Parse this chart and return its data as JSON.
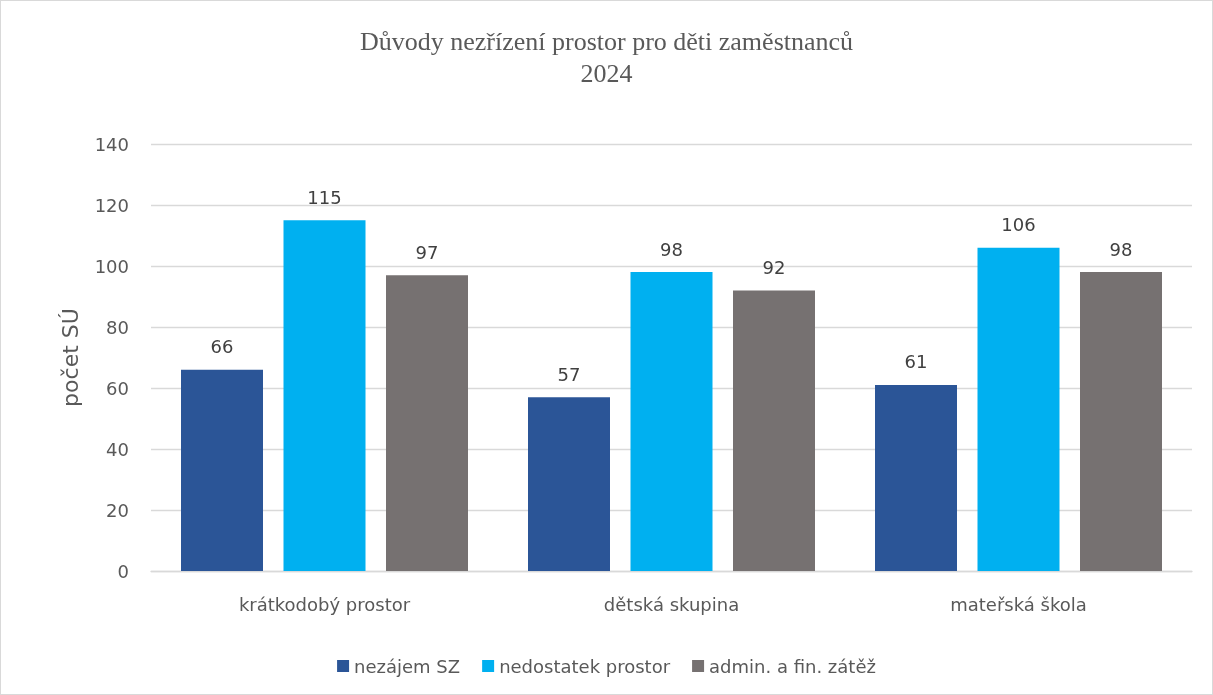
{
  "chart_data": {
    "type": "bar",
    "title": "Důvody nezřízení prostor pro děti zaměstnanců",
    "subtitle": "2024",
    "ylabel": "počet SÚ",
    "categories": [
      "krátkodobý prostor",
      "dětská skupina",
      "mateřská škola"
    ],
    "series": [
      {
        "name": "nezájem SZ",
        "color": "#2b5597",
        "values": [
          66,
          57,
          61
        ]
      },
      {
        "name": "nedostatek prostor",
        "color": "#00b0f0",
        "values": [
          115,
          98,
          106
        ]
      },
      {
        "name": "admin. a fin. zátěž",
        "color": "#767171",
        "values": [
          97,
          92,
          98
        ]
      }
    ],
    "ylim": [
      0,
      140
    ],
    "yticks": [
      0,
      20,
      40,
      60,
      80,
      100,
      120,
      140
    ],
    "grid": "y",
    "legend": "bottom",
    "data_labels": true
  }
}
